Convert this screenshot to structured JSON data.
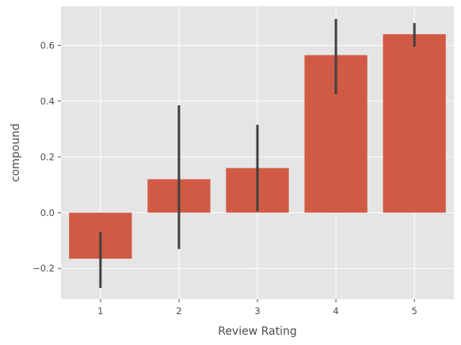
{
  "chart_data": {
    "type": "bar",
    "title": "",
    "xlabel": "Review Rating",
    "ylabel": "compound",
    "categories": [
      "1",
      "2",
      "3",
      "4",
      "5"
    ],
    "values": [
      -0.165,
      0.12,
      0.16,
      0.565,
      0.64
    ],
    "error_bars": [
      [
        -0.27,
        -0.07
      ],
      [
        -0.13,
        0.385
      ],
      [
        0.005,
        0.315
      ],
      [
        0.425,
        0.695
      ],
      [
        0.595,
        0.68
      ]
    ],
    "ylim": [
      -0.31,
      0.74
    ],
    "yticks": [
      -0.2,
      0.0,
      0.2,
      0.4,
      0.6
    ],
    "ytick_labels": [
      "−0.2",
      "0.0",
      "0.2",
      "0.4",
      "0.6"
    ],
    "grid": true,
    "colors": {
      "bar": "#d15a44",
      "errorbar": "#404040",
      "background": "#e5e5e5",
      "grid": "#ffffff"
    }
  }
}
